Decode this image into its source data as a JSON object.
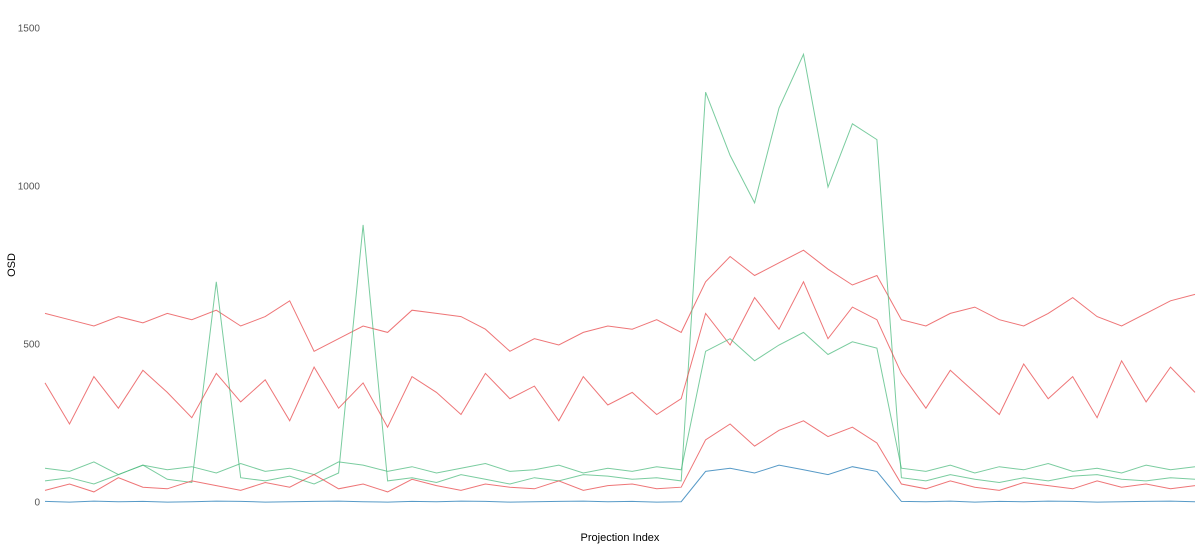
{
  "chart_data": {
    "type": "line",
    "y_label": "OSD",
    "x_label": "Projection Index",
    "ylim": [
      0,
      1500
    ],
    "yticks": [
      0,
      500,
      1000,
      1500
    ],
    "grid": false,
    "series": [
      {
        "color": "#e8474a",
        "values": [
          600,
          580,
          560,
          590,
          570,
          600,
          580,
          610,
          560,
          590,
          640,
          480,
          520,
          560,
          540,
          610,
          600,
          590,
          550,
          480,
          520,
          500,
          540,
          560,
          550,
          580,
          540,
          700,
          780,
          720,
          760,
          800,
          740,
          690,
          720,
          580,
          560,
          600,
          620,
          580,
          560,
          600,
          650,
          590,
          560,
          600,
          640,
          660
        ]
      },
      {
        "color": "#4dbb7f",
        "values": [
          70,
          80,
          60,
          90,
          120,
          75,
          65,
          700,
          80,
          70,
          85,
          60,
          95,
          880,
          70,
          80,
          65,
          90,
          75,
          60,
          80,
          70,
          90,
          85,
          75,
          80,
          70,
          1300,
          1100,
          950,
          1250,
          1420,
          1000,
          1200,
          1150,
          80,
          70,
          90,
          75,
          65,
          80,
          70,
          85,
          90,
          75,
          70,
          80,
          75
        ]
      },
      {
        "color": "#e8474a",
        "values": [
          380,
          250,
          400,
          300,
          420,
          350,
          270,
          410,
          320,
          390,
          260,
          430,
          300,
          380,
          240,
          400,
          350,
          280,
          410,
          330,
          370,
          260,
          400,
          310,
          350,
          280,
          330,
          600,
          500,
          650,
          550,
          700,
          520,
          620,
          580,
          410,
          300,
          420,
          350,
          280,
          440,
          330,
          400,
          270,
          450,
          320,
          430,
          350
        ]
      },
      {
        "color": "#4dbb7f",
        "values": [
          110,
          100,
          130,
          90,
          120,
          105,
          115,
          95,
          125,
          100,
          110,
          90,
          130,
          120,
          100,
          115,
          95,
          110,
          125,
          100,
          105,
          120,
          95,
          110,
          100,
          115,
          105,
          480,
          520,
          450,
          500,
          540,
          470,
          510,
          490,
          110,
          100,
          120,
          95,
          115,
          105,
          125,
          100,
          110,
          95,
          120,
          105,
          115
        ]
      },
      {
        "color": "#e8474a",
        "values": [
          40,
          60,
          35,
          80,
          50,
          45,
          70,
          55,
          40,
          65,
          50,
          90,
          45,
          60,
          35,
          75,
          55,
          40,
          60,
          50,
          45,
          70,
          40,
          55,
          60,
          45,
          50,
          200,
          250,
          180,
          230,
          260,
          210,
          240,
          190,
          60,
          45,
          70,
          50,
          40,
          65,
          55,
          45,
          70,
          50,
          60,
          45,
          55
        ]
      },
      {
        "color": "#1f78b4",
        "values": [
          5,
          3,
          6,
          4,
          5,
          3,
          4,
          6,
          5,
          3,
          4,
          5,
          6,
          4,
          3,
          5,
          4,
          6,
          5,
          3,
          4,
          5,
          6,
          4,
          5,
          3,
          4,
          100,
          110,
          95,
          120,
          105,
          90,
          115,
          100,
          5,
          4,
          6,
          3,
          5,
          4,
          6,
          5,
          3,
          4,
          5,
          6,
          4
        ]
      }
    ]
  }
}
